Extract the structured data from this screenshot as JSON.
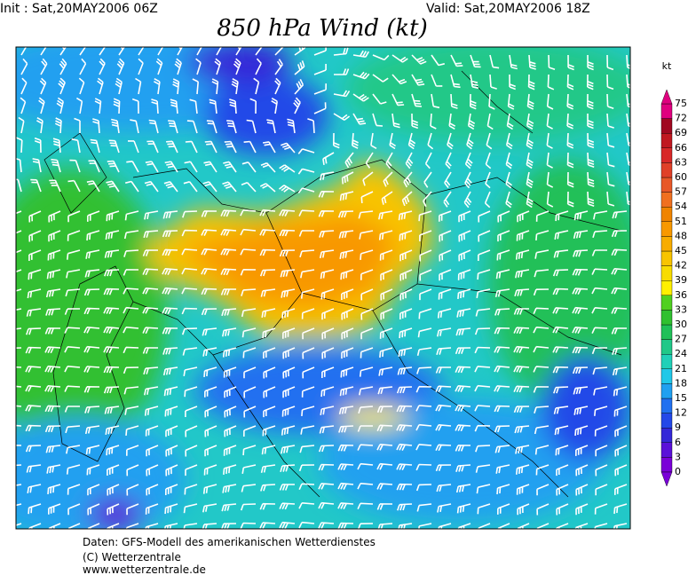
{
  "header": {
    "init": "Init : Sat,20MAY2006 06Z",
    "valid": "Valid: Sat,20MAY2006 18Z",
    "title": "850 hPa Wind (kt)"
  },
  "legend": {
    "unit": "kt",
    "levels": [
      0,
      3,
      6,
      9,
      12,
      15,
      18,
      21,
      24,
      27,
      30,
      33,
      36,
      39,
      42,
      45,
      48,
      51,
      54,
      57,
      60,
      63,
      66,
      69,
      72,
      75
    ],
    "colors": [
      "#7a00d8",
      "#5a10d8",
      "#3428d8",
      "#2448e8",
      "#2070f0",
      "#20a0f0",
      "#20c8e8",
      "#20d0b8",
      "#20c888",
      "#20c058",
      "#30c030",
      "#50d020",
      "#fff000",
      "#f8dc00",
      "#f8c400",
      "#f8ac00",
      "#f89800",
      "#f08400",
      "#f07020",
      "#e85828",
      "#e04028",
      "#d82828",
      "#c01820",
      "#a00820",
      "#e0007f"
    ]
  },
  "footer": {
    "lines": [
      "Daten: GFS-Modell des amerikanischen Wetterdienstes",
      "(C) Wetterzentrale",
      "www.wetterzentrale.de"
    ]
  }
}
